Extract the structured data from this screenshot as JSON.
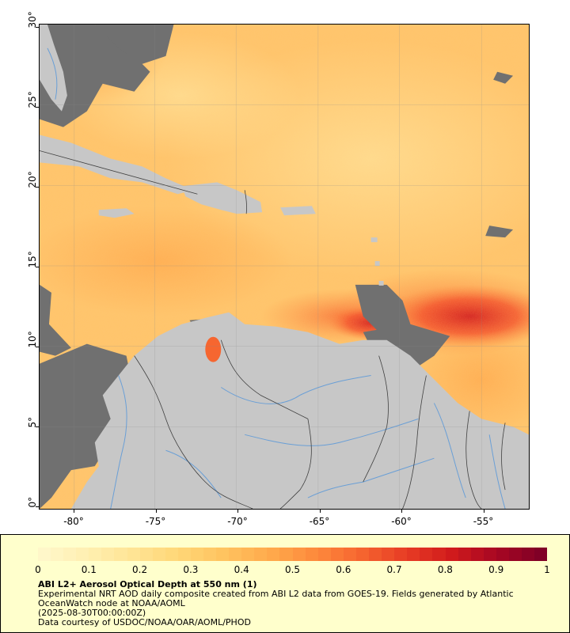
{
  "map": {
    "lat_ticks": [
      "30°",
      "25°",
      "20°",
      "15°",
      "10°",
      "5°",
      "0°"
    ],
    "lon_ticks": [
      "-80°",
      "-75°",
      "-70°",
      "-65°",
      "-60°",
      "-55°"
    ],
    "colors": {
      "land": "#c7c7c7",
      "no_data": "#707070",
      "border": "#404040",
      "river": "#6a9fd6"
    }
  },
  "legend": {
    "title": "ABI L2+ Aerosol Optical Depth at 550 nm (1)",
    "description": "Experimental NRT AOD daily composite created from ABI L2 data from GOES-19. Fields generated by Atlantic OceanWatch node at NOAA/AOML",
    "time": "(2025-08-30T00:00:00Z)",
    "credit": "Data courtesy of USDOC/NOAA/OAR/AOML/PHOD",
    "colorbar_labels": [
      "0",
      "0.1",
      "0.2",
      "0.3",
      "0.4",
      "0.5",
      "0.6",
      "0.7",
      "0.8",
      "0.9",
      "1"
    ],
    "colorbar_colors": [
      "#fff7c9",
      "#ffefb0",
      "#ffe493",
      "#ffd676",
      "#ffc35f",
      "#ffaa4c",
      "#fd8a3c",
      "#f66630",
      "#e83d25",
      "#d11b1c",
      "#a80723",
      "#800026"
    ]
  }
}
